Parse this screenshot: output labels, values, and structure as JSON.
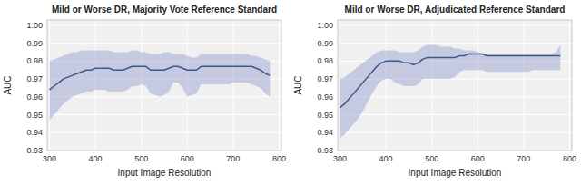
{
  "chart_data": [
    {
      "type": "line",
      "title": "Mild or Worse DR, Majority Vote Reference Standard",
      "xlabel": "Input Image Resolution",
      "ylabel": "AUC",
      "xlim": [
        295,
        805
      ],
      "ylim": [
        0.93,
        1.003
      ],
      "xticks": [
        300,
        400,
        500,
        600,
        700,
        800
      ],
      "yticks": [
        0.93,
        0.94,
        0.95,
        0.96,
        0.97,
        0.98,
        0.99,
        {
          "value": 1.0,
          "label": "1.00"
        }
      ],
      "grid": true,
      "x": [
        300,
        310,
        320,
        330,
        340,
        350,
        360,
        370,
        380,
        390,
        400,
        410,
        420,
        430,
        440,
        450,
        460,
        470,
        480,
        490,
        500,
        510,
        520,
        530,
        540,
        550,
        560,
        570,
        580,
        590,
        600,
        610,
        620,
        630,
        640,
        650,
        660,
        670,
        680,
        690,
        700,
        710,
        720,
        730,
        740,
        750,
        760,
        770,
        780
      ],
      "series": [
        {
          "type": "band",
          "color": "#8891c8",
          "upper": [
            0.98,
            0.981,
            0.982,
            0.983,
            0.984,
            0.985,
            0.985,
            0.986,
            0.986,
            0.986,
            0.986,
            0.986,
            0.986,
            0.986,
            0.985,
            0.985,
            0.985,
            0.985,
            0.986,
            0.986,
            0.985,
            0.985,
            0.984,
            0.984,
            0.984,
            0.985,
            0.985,
            0.984,
            0.984,
            0.984,
            0.983,
            0.982,
            0.982,
            0.984,
            0.984,
            0.984,
            0.984,
            0.984,
            0.984,
            0.984,
            0.984,
            0.984,
            0.984,
            0.984,
            0.983,
            0.983,
            0.982,
            0.981,
            0.98
          ],
          "lower": [
            0.947,
            0.95,
            0.953,
            0.956,
            0.958,
            0.96,
            0.961,
            0.962,
            0.963,
            0.963,
            0.964,
            0.964,
            0.964,
            0.963,
            0.963,
            0.963,
            0.963,
            0.964,
            0.966,
            0.966,
            0.967,
            0.966,
            0.962,
            0.961,
            0.96,
            0.961,
            0.963,
            0.968,
            0.968,
            0.965,
            0.96,
            0.961,
            0.962,
            0.967,
            0.967,
            0.967,
            0.967,
            0.967,
            0.967,
            0.967,
            0.968,
            0.968,
            0.968,
            0.968,
            0.967,
            0.966,
            0.965,
            0.962,
            0.96
          ]
        },
        {
          "type": "line",
          "color": "#3a5a8c",
          "values": [
            0.964,
            0.966,
            0.968,
            0.97,
            0.971,
            0.972,
            0.973,
            0.974,
            0.975,
            0.975,
            0.976,
            0.976,
            0.976,
            0.976,
            0.975,
            0.975,
            0.975,
            0.976,
            0.977,
            0.977,
            0.977,
            0.977,
            0.975,
            0.975,
            0.975,
            0.975,
            0.976,
            0.977,
            0.977,
            0.976,
            0.975,
            0.975,
            0.975,
            0.977,
            0.977,
            0.977,
            0.977,
            0.977,
            0.977,
            0.977,
            0.977,
            0.977,
            0.977,
            0.977,
            0.977,
            0.976,
            0.975,
            0.973,
            0.972
          ]
        }
      ]
    },
    {
      "type": "line",
      "title": "Mild or Worse DR, Adjudicated Reference Standard",
      "xlabel": "Input Image Resolution",
      "ylabel": "AUC",
      "xlim": [
        295,
        805
      ],
      "ylim": [
        0.93,
        1.003
      ],
      "xticks": [
        300,
        400,
        500,
        600,
        700,
        800
      ],
      "yticks": [
        0.93,
        0.94,
        0.95,
        0.96,
        0.97,
        0.98,
        0.99,
        {
          "value": 1.0,
          "label": "1.00"
        }
      ],
      "grid": true,
      "x": [
        300,
        310,
        320,
        330,
        340,
        350,
        360,
        370,
        380,
        390,
        400,
        410,
        420,
        430,
        440,
        450,
        460,
        470,
        480,
        490,
        500,
        510,
        520,
        530,
        540,
        550,
        560,
        570,
        580,
        590,
        600,
        610,
        620,
        630,
        640,
        650,
        660,
        670,
        680,
        690,
        700,
        710,
        720,
        730,
        740,
        750,
        760,
        770,
        780
      ],
      "series": [
        {
          "type": "band",
          "color": "#8891c8",
          "upper": [
            0.97,
            0.971,
            0.973,
            0.975,
            0.977,
            0.979,
            0.981,
            0.983,
            0.985,
            0.986,
            0.986,
            0.986,
            0.986,
            0.985,
            0.985,
            0.985,
            0.985,
            0.986,
            0.988,
            0.989,
            0.989,
            0.989,
            0.988,
            0.988,
            0.988,
            0.987,
            0.987,
            0.986,
            0.986,
            0.986,
            0.985,
            0.984,
            0.984,
            0.984,
            0.984,
            0.984,
            0.984,
            0.984,
            0.984,
            0.984,
            0.984,
            0.984,
            0.984,
            0.984,
            0.984,
            0.984,
            0.984,
            0.985,
            0.989
          ],
          "lower": [
            0.937,
            0.939,
            0.942,
            0.945,
            0.948,
            0.952,
            0.957,
            0.962,
            0.966,
            0.969,
            0.97,
            0.97,
            0.968,
            0.967,
            0.966,
            0.966,
            0.966,
            0.967,
            0.97,
            0.97,
            0.97,
            0.97,
            0.97,
            0.97,
            0.97,
            0.971,
            0.974,
            0.975,
            0.975,
            0.975,
            0.975,
            0.975,
            0.974,
            0.974,
            0.974,
            0.974,
            0.974,
            0.974,
            0.974,
            0.974,
            0.974,
            0.974,
            0.975,
            0.975,
            0.975,
            0.975,
            0.975,
            0.975,
            0.975
          ]
        },
        {
          "type": "line",
          "color": "#3a5a8c",
          "values": [
            0.954,
            0.956,
            0.959,
            0.962,
            0.965,
            0.968,
            0.971,
            0.974,
            0.977,
            0.979,
            0.98,
            0.98,
            0.98,
            0.98,
            0.979,
            0.979,
            0.978,
            0.979,
            0.981,
            0.982,
            0.982,
            0.982,
            0.982,
            0.982,
            0.982,
            0.982,
            0.983,
            0.983,
            0.984,
            0.984,
            0.984,
            0.984,
            0.983,
            0.983,
            0.983,
            0.983,
            0.983,
            0.983,
            0.983,
            0.983,
            0.983,
            0.983,
            0.983,
            0.983,
            0.983,
            0.983,
            0.983,
            0.983,
            0.983
          ]
        }
      ]
    }
  ]
}
